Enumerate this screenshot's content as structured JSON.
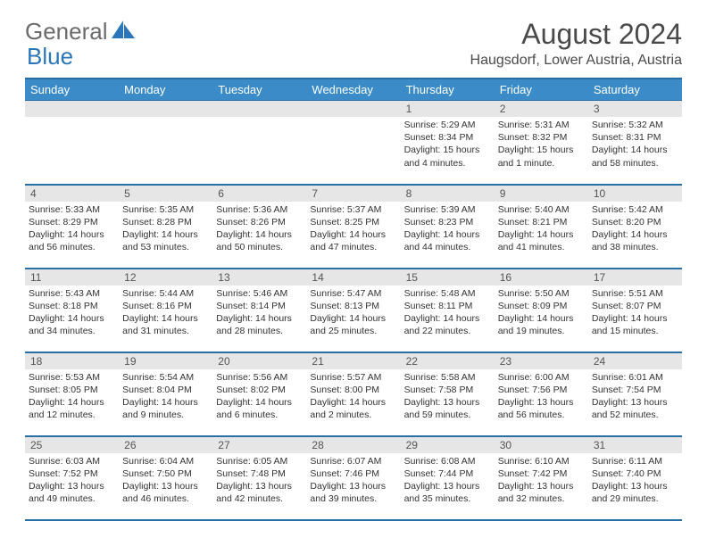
{
  "logo": {
    "textGray": "General",
    "textBlue": "Blue"
  },
  "title": "August 2024",
  "location": "Haugsdorf, Lower Austria, Austria",
  "colors": {
    "headerBg": "#3b8bc8",
    "headerBorder": "#2a6fa3",
    "dayNumBg": "#e6e6e6",
    "textGray": "#6b6b6b",
    "textBlue": "#2a76b8"
  },
  "dayHeaders": [
    "Sunday",
    "Monday",
    "Tuesday",
    "Wednesday",
    "Thursday",
    "Friday",
    "Saturday"
  ],
  "weeks": [
    [
      null,
      null,
      null,
      null,
      {
        "n": "1",
        "sr": "5:29 AM",
        "ss": "8:34 PM",
        "dl": "15 hours and 4 minutes."
      },
      {
        "n": "2",
        "sr": "5:31 AM",
        "ss": "8:32 PM",
        "dl": "15 hours and 1 minute."
      },
      {
        "n": "3",
        "sr": "5:32 AM",
        "ss": "8:31 PM",
        "dl": "14 hours and 58 minutes."
      }
    ],
    [
      {
        "n": "4",
        "sr": "5:33 AM",
        "ss": "8:29 PM",
        "dl": "14 hours and 56 minutes."
      },
      {
        "n": "5",
        "sr": "5:35 AM",
        "ss": "8:28 PM",
        "dl": "14 hours and 53 minutes."
      },
      {
        "n": "6",
        "sr": "5:36 AM",
        "ss": "8:26 PM",
        "dl": "14 hours and 50 minutes."
      },
      {
        "n": "7",
        "sr": "5:37 AM",
        "ss": "8:25 PM",
        "dl": "14 hours and 47 minutes."
      },
      {
        "n": "8",
        "sr": "5:39 AM",
        "ss": "8:23 PM",
        "dl": "14 hours and 44 minutes."
      },
      {
        "n": "9",
        "sr": "5:40 AM",
        "ss": "8:21 PM",
        "dl": "14 hours and 41 minutes."
      },
      {
        "n": "10",
        "sr": "5:42 AM",
        "ss": "8:20 PM",
        "dl": "14 hours and 38 minutes."
      }
    ],
    [
      {
        "n": "11",
        "sr": "5:43 AM",
        "ss": "8:18 PM",
        "dl": "14 hours and 34 minutes."
      },
      {
        "n": "12",
        "sr": "5:44 AM",
        "ss": "8:16 PM",
        "dl": "14 hours and 31 minutes."
      },
      {
        "n": "13",
        "sr": "5:46 AM",
        "ss": "8:14 PM",
        "dl": "14 hours and 28 minutes."
      },
      {
        "n": "14",
        "sr": "5:47 AM",
        "ss": "8:13 PM",
        "dl": "14 hours and 25 minutes."
      },
      {
        "n": "15",
        "sr": "5:48 AM",
        "ss": "8:11 PM",
        "dl": "14 hours and 22 minutes."
      },
      {
        "n": "16",
        "sr": "5:50 AM",
        "ss": "8:09 PM",
        "dl": "14 hours and 19 minutes."
      },
      {
        "n": "17",
        "sr": "5:51 AM",
        "ss": "8:07 PM",
        "dl": "14 hours and 15 minutes."
      }
    ],
    [
      {
        "n": "18",
        "sr": "5:53 AM",
        "ss": "8:05 PM",
        "dl": "14 hours and 12 minutes."
      },
      {
        "n": "19",
        "sr": "5:54 AM",
        "ss": "8:04 PM",
        "dl": "14 hours and 9 minutes."
      },
      {
        "n": "20",
        "sr": "5:56 AM",
        "ss": "8:02 PM",
        "dl": "14 hours and 6 minutes."
      },
      {
        "n": "21",
        "sr": "5:57 AM",
        "ss": "8:00 PM",
        "dl": "14 hours and 2 minutes."
      },
      {
        "n": "22",
        "sr": "5:58 AM",
        "ss": "7:58 PM",
        "dl": "13 hours and 59 minutes."
      },
      {
        "n": "23",
        "sr": "6:00 AM",
        "ss": "7:56 PM",
        "dl": "13 hours and 56 minutes."
      },
      {
        "n": "24",
        "sr": "6:01 AM",
        "ss": "7:54 PM",
        "dl": "13 hours and 52 minutes."
      }
    ],
    [
      {
        "n": "25",
        "sr": "6:03 AM",
        "ss": "7:52 PM",
        "dl": "13 hours and 49 minutes."
      },
      {
        "n": "26",
        "sr": "6:04 AM",
        "ss": "7:50 PM",
        "dl": "13 hours and 46 minutes."
      },
      {
        "n": "27",
        "sr": "6:05 AM",
        "ss": "7:48 PM",
        "dl": "13 hours and 42 minutes."
      },
      {
        "n": "28",
        "sr": "6:07 AM",
        "ss": "7:46 PM",
        "dl": "13 hours and 39 minutes."
      },
      {
        "n": "29",
        "sr": "6:08 AM",
        "ss": "7:44 PM",
        "dl": "13 hours and 35 minutes."
      },
      {
        "n": "30",
        "sr": "6:10 AM",
        "ss": "7:42 PM",
        "dl": "13 hours and 32 minutes."
      },
      {
        "n": "31",
        "sr": "6:11 AM",
        "ss": "7:40 PM",
        "dl": "13 hours and 29 minutes."
      }
    ]
  ],
  "labels": {
    "sunrise": "Sunrise:",
    "sunset": "Sunset:",
    "daylight": "Daylight:"
  }
}
